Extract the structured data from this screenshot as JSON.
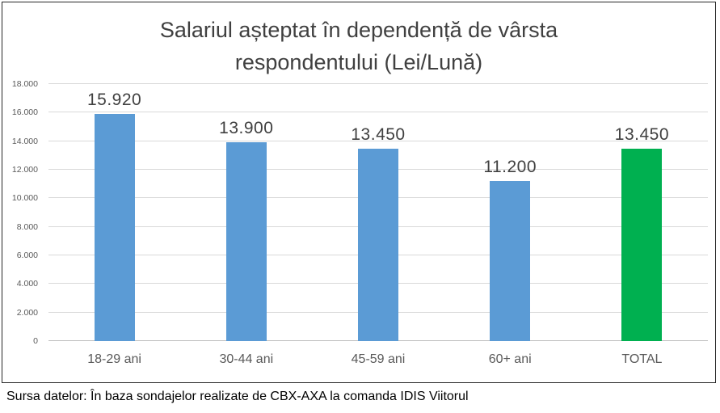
{
  "chart_data": {
    "type": "bar",
    "title": "Salariul așteptat în dependență de vârsta respondentului (Lei/Lună)",
    "categories": [
      "18-29 ani",
      "30-44 ani",
      "45-59 ani",
      "60+ ani",
      "TOTAL"
    ],
    "values": [
      15920,
      13900,
      13450,
      11200,
      13450
    ],
    "value_labels": [
      "15.920",
      "13.900",
      "13.450",
      "11.200",
      "13.450"
    ],
    "y_ticks": [
      "0",
      "2.000",
      "4.000",
      "6.000",
      "8.000",
      "10.000",
      "12.000",
      "14.000",
      "16.000",
      "18.000"
    ],
    "ylim": [
      0,
      18000
    ],
    "xlabel": "",
    "ylabel": "",
    "grid": true,
    "legend": "none",
    "bar_colors": [
      "#5B9BD5",
      "#5B9BD5",
      "#5B9BD5",
      "#5B9BD5",
      "#00B050"
    ],
    "gridline_color": "#D9D9D9"
  },
  "footer": {
    "source_text": "Sursa datelor: În baza sondajelor realizate de CBX-AXA la comanda IDIS Viitorul"
  }
}
